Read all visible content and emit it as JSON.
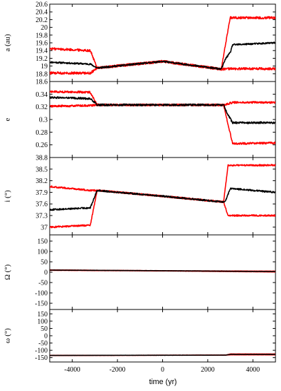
{
  "chart_data": {
    "type": "line",
    "xlabel": "time (yr)",
    "xlim": [
      -5000,
      5000
    ],
    "xticks": [
      -4000,
      -2000,
      0,
      2000,
      4000
    ],
    "colors": {
      "nominal": "#000000",
      "clones": "#ff0000"
    },
    "panels": [
      {
        "ylabel": "a (au)",
        "ylim": [
          18.6,
          20.6
        ],
        "yticks": [
          "20.6",
          "20.4",
          "20.2",
          "20",
          "19.8",
          "19.6",
          "19.4",
          "19.2",
          "19",
          "18.8",
          "18.6"
        ],
        "series": [
          {
            "role": "nominal",
            "noise": 0.02,
            "x": [
              -5000,
              -3200,
              -2900,
              0,
              2600,
              2800,
              3000,
              3100,
              5000
            ],
            "y": [
              19.1,
              19.05,
              18.95,
              19.12,
              18.92,
              19.2,
              19.35,
              19.55,
              19.6
            ]
          },
          {
            "role": "clone-upper",
            "noise": 0.03,
            "x": [
              -5000,
              -3200,
              -2900,
              0,
              2600,
              2800,
              3000,
              5000
            ],
            "y": [
              19.45,
              19.4,
              18.95,
              19.12,
              18.92,
              19.6,
              20.25,
              20.25
            ]
          },
          {
            "role": "clone-lower",
            "noise": 0.03,
            "x": [
              -5000,
              -3200,
              -2900,
              0,
              2600,
              2800,
              3000,
              5000
            ],
            "y": [
              18.82,
              18.82,
              18.95,
              19.12,
              18.92,
              18.92,
              18.93,
              18.93
            ]
          }
        ]
      },
      {
        "ylabel": "e",
        "ylim": [
          0.24,
          0.36
        ],
        "yticks": [
          "0.34",
          "0.32",
          "0.3",
          "0.28",
          "0.26"
        ],
        "series": [
          {
            "role": "nominal",
            "noise": 0.0015,
            "x": [
              -5000,
              -3200,
              -2900,
              2700,
              2900,
              3100,
              5000
            ],
            "y": [
              0.335,
              0.333,
              0.323,
              0.323,
              0.307,
              0.295,
              0.295
            ]
          },
          {
            "role": "clone-upper",
            "noise": 0.0015,
            "x": [
              -5000,
              -3200,
              -2900,
              2700,
              3100,
              5000
            ],
            "y": [
              0.344,
              0.343,
              0.323,
              0.323,
              0.327,
              0.327
            ]
          },
          {
            "role": "clone-lower",
            "noise": 0.0015,
            "x": [
              -5000,
              -3200,
              -2900,
              2700,
              3100,
              5000
            ],
            "y": [
              0.321,
              0.322,
              0.323,
              0.323,
              0.262,
              0.263
            ]
          }
        ]
      },
      {
        "ylabel": "i (°)",
        "ylim": [
          36.8,
          38.8
        ],
        "yticks": [
          "38.8",
          "38.5",
          "38.2",
          "37.9",
          "37.6",
          "37.3",
          "37"
        ],
        "series": [
          {
            "role": "nominal",
            "noise": 0.02,
            "x": [
              -5000,
              -3200,
              -2900,
              0,
              2700,
              2800,
              3000,
              5000
            ],
            "y": [
              37.45,
              37.5,
              37.95,
              37.8,
              37.65,
              37.7,
              38.0,
              37.9
            ]
          },
          {
            "role": "clone-upper",
            "noise": 0.02,
            "x": [
              -5000,
              -3200,
              -2900,
              0,
              2700,
              2900,
              5000
            ],
            "y": [
              38.05,
              37.95,
              37.95,
              37.8,
              37.65,
              38.6,
              38.6
            ]
          },
          {
            "role": "clone-lower",
            "noise": 0.02,
            "x": [
              -5000,
              -3200,
              -2900,
              0,
              2700,
              2900,
              5000
            ],
            "y": [
              37.0,
              37.05,
              37.95,
              37.8,
              37.65,
              37.3,
              37.3
            ]
          }
        ]
      },
      {
        "ylabel": "Ω (°)",
        "ylim": [
          -180,
          180
        ],
        "yticks": [
          "150",
          "100",
          "50",
          "0",
          "-50",
          "-100",
          "-150"
        ],
        "series": [
          {
            "role": "nominal",
            "noise": 0.5,
            "x": [
              -5000,
              0,
              5000
            ],
            "y": [
              10,
              7,
              3
            ]
          },
          {
            "role": "clone-upper",
            "noise": 0.5,
            "x": [
              -5000,
              0,
              5000
            ],
            "y": [
              11,
              7,
              5
            ]
          },
          {
            "role": "clone-lower",
            "noise": 0.5,
            "x": [
              -5000,
              0,
              5000
            ],
            "y": [
              9,
              6,
              1
            ]
          }
        ]
      },
      {
        "ylabel": "ω (°)",
        "ylim": [
          -180,
          180
        ],
        "yticks": [
          "150",
          "100",
          "50",
          "0",
          "-50",
          "-100",
          "-150"
        ],
        "series": [
          {
            "role": "nominal",
            "noise": 0.5,
            "x": [
              -5000,
              2800,
              3000,
              5000
            ],
            "y": [
              -135,
              -133,
              -128,
              -128
            ]
          },
          {
            "role": "clone-upper",
            "noise": 0.5,
            "x": [
              -5000,
              2800,
              3000,
              5000
            ],
            "y": [
              -135,
              -133,
              -125,
              -125
            ]
          },
          {
            "role": "clone-lower",
            "noise": 0.5,
            "x": [
              -5000,
              2800,
              3000,
              5000
            ],
            "y": [
              -135,
              -133,
              -131,
              -131
            ]
          }
        ]
      }
    ]
  }
}
